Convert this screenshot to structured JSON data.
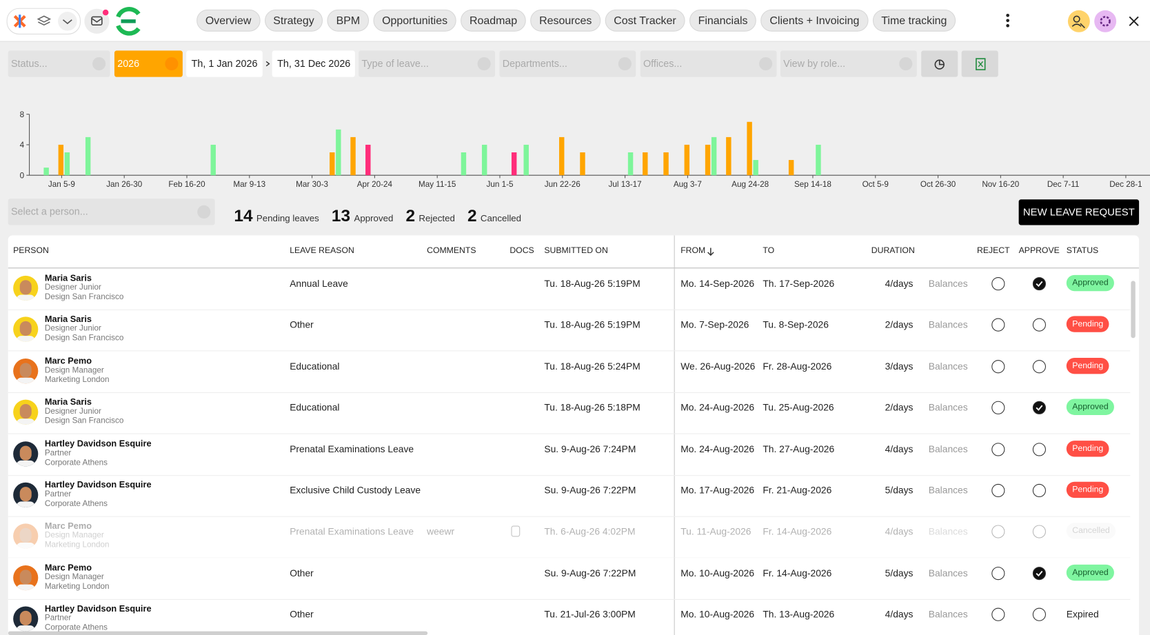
{
  "nav": {
    "tabs": [
      "Overview",
      "Strategy",
      "BPM",
      "Opportunities",
      "Roadmap",
      "Resources",
      "Cost Tracker",
      "Financials",
      "Clients + Invoicing",
      "Time tracking"
    ]
  },
  "filters": {
    "status": "Status...",
    "year": "2026",
    "from": "Th, 1 Jan 2026",
    "to": "Th, 31 Dec 2026",
    "leave_type": "Type of leave...",
    "departments": "Departments...",
    "offices": "Offices...",
    "role": "View by role..."
  },
  "chart_data": {
    "type": "bar",
    "categories": [
      null,
      "Jan 5-9",
      null,
      null,
      "Jan 26-30",
      null,
      null,
      "Feb 16-20",
      null,
      null,
      "Mar 9-13",
      null,
      null,
      "Mar 30-3",
      null,
      null,
      "Apr 20-24",
      null,
      null,
      "May 11-15",
      null,
      null,
      "Jun 1-5",
      null,
      null,
      "Jun 22-26",
      null,
      null,
      "Jul 13-17",
      null,
      null,
      "Aug 3-7",
      null,
      null,
      "Aug 24-28",
      null,
      null,
      "Sep 14-18",
      null,
      null,
      "Oct 5-9",
      null,
      null,
      "Oct 26-30",
      null,
      null,
      "Nov 16-20",
      null,
      null,
      "Dec 7-11",
      null,
      null,
      "Dec 28-1"
    ],
    "series": [
      {
        "color": "#ffa500",
        "values": [
          0,
          4,
          0,
          0,
          0,
          0,
          0,
          0,
          0,
          0,
          0,
          0,
          0,
          0,
          3,
          5,
          0,
          0,
          0,
          0,
          0,
          0,
          0,
          0,
          0,
          5,
          3,
          0,
          0,
          3,
          3,
          4,
          4,
          5,
          7,
          0,
          2,
          0,
          0,
          0,
          0,
          0,
          0,
          0,
          0,
          0,
          0,
          0,
          0,
          0,
          0,
          0,
          0
        ]
      },
      {
        "color": "#7ef59a",
        "values": [
          1,
          3,
          5,
          0,
          0,
          0,
          0,
          0,
          4,
          0,
          0,
          0,
          0,
          0,
          6,
          0,
          0,
          0,
          0,
          0,
          3,
          4,
          0,
          4,
          0,
          0,
          0,
          0,
          3,
          0,
          0,
          0,
          5,
          0,
          2,
          0,
          0,
          4,
          0,
          0,
          0,
          0,
          0,
          0,
          0,
          0,
          0,
          0,
          0,
          0,
          0,
          0,
          0
        ]
      },
      {
        "color": "#ff2d7a",
        "values": [
          0,
          0,
          0,
          0,
          0,
          0,
          0,
          0,
          0,
          0,
          0,
          0,
          0,
          0,
          0,
          0,
          4,
          0,
          0,
          0,
          0,
          0,
          0,
          3,
          0,
          0,
          0,
          0,
          0,
          0,
          0,
          0,
          0,
          0,
          0,
          0,
          0,
          0,
          0,
          0,
          0,
          0,
          0,
          0,
          0,
          0,
          0,
          0,
          0,
          0,
          0,
          0,
          0
        ]
      }
    ],
    "ylim": [
      0,
      8
    ],
    "yticks": [
      0,
      4,
      8
    ]
  },
  "person_select": "Select a person...",
  "stats": [
    {
      "count": 14,
      "label": "Pending leaves"
    },
    {
      "count": 13,
      "label": "Approved"
    },
    {
      "count": 2,
      "label": "Rejected"
    },
    {
      "count": 2,
      "label": "Cancelled"
    }
  ],
  "new_request": "NEW LEAVE REQUEST",
  "table": {
    "headers": {
      "person": "PERSON",
      "reason": "LEAVE REASON",
      "comments": "COMMENTS",
      "docs": "DOCS",
      "submitted": "SUBMITTED ON",
      "from": "FROM",
      "to": "TO",
      "duration": "DURATION",
      "reject": "REJECT",
      "approve": "APPROVE",
      "status": "STATUS"
    },
    "rows": [
      {
        "name": "Maria Saris",
        "role": "Designer Junior",
        "office": "Design San Francisco",
        "avatar_color": "#f7d21c",
        "reason": "Annual Leave",
        "submitted": "Tu. 18-Aug-26 5:19PM",
        "from": "Mo. 14-Sep-2026",
        "to": "Th. 17-Sep-2026",
        "duration": "4/days",
        "balances": "Balances",
        "approved": true,
        "status": "Approved",
        "status_color": "#7ff5a0",
        "status_text_color": "#17602f"
      },
      {
        "name": "Maria Saris",
        "role": "Designer Junior",
        "office": "Design San Francisco",
        "avatar_color": "#f7d21c",
        "reason": "Other",
        "submitted": "Tu. 18-Aug-26 5:19PM",
        "from": "Mo. 7-Sep-2026",
        "to": "Tu. 8-Sep-2026",
        "duration": "2/days",
        "balances": "Balances",
        "approved": false,
        "status": "Pending",
        "status_color": "#ff4f45",
        "status_text_color": "#ffffff"
      },
      {
        "name": "Marc Pemo",
        "role": "Design Manager",
        "office": "Marketing London",
        "avatar_color": "#e8721c",
        "reason": "Educational",
        "submitted": "Tu. 18-Aug-26 5:24PM",
        "from": "We. 26-Aug-2026",
        "to": "Fr. 28-Aug-2026",
        "duration": "3/days",
        "balances": "Balances",
        "approved": false,
        "status": "Pending",
        "status_color": "#ff4f45",
        "status_text_color": "#ffffff"
      },
      {
        "name": "Maria Saris",
        "role": "Designer Junior",
        "office": "Design San Francisco",
        "avatar_color": "#f7d21c",
        "reason": "Educational",
        "submitted": "Tu. 18-Aug-26 5:18PM",
        "from": "Mo. 24-Aug-2026",
        "to": "Tu. 25-Aug-2026",
        "duration": "2/days",
        "balances": "Balances",
        "approved": true,
        "status": "Approved",
        "status_color": "#7ff5a0",
        "status_text_color": "#17602f"
      },
      {
        "name": "Hartley Davidson Esquire",
        "role": "Partner",
        "office": "Corporate Athens",
        "avatar_color": "#1e2a38",
        "reason": "Prenatal Examinations Leave",
        "submitted": "Su. 9-Aug-26 7:24PM",
        "from": "Mo. 24-Aug-2026",
        "to": "Th. 27-Aug-2026",
        "duration": "4/days",
        "balances": "Balances",
        "approved": false,
        "status": "Pending",
        "status_color": "#ff4f45",
        "status_text_color": "#ffffff"
      },
      {
        "name": "Hartley Davidson Esquire",
        "role": "Partner",
        "office": "Corporate Athens",
        "avatar_color": "#1e2a38",
        "reason": "Exclusive Child Custody Leave",
        "submitted": "Su. 9-Aug-26 7:22PM",
        "from": "Mo. 17-Aug-2026",
        "to": "Fr. 21-Aug-2026",
        "duration": "5/days",
        "balances": "Balances",
        "approved": false,
        "status": "Pending",
        "status_color": "#ff4f45",
        "status_text_color": "#ffffff"
      },
      {
        "name": "Marc Pemo",
        "role": "Design Manager",
        "office": "Marketing London",
        "avatar_color": "#e8721c",
        "reason": "Prenatal Examinations Leave",
        "comments": "weewr",
        "docs": true,
        "submitted": "Th. 6-Aug-26 4:02PM",
        "from": "Tu. 11-Aug-2026",
        "to": "Fr. 14-Aug-2026",
        "duration": "4/days",
        "balances": "Balances",
        "approved": false,
        "muted": true,
        "status": "Cancelled",
        "status_color": "#f2f2f2",
        "status_text_color": "#888888"
      },
      {
        "name": "Marc Pemo",
        "role": "Design Manager",
        "office": "Marketing London",
        "avatar_color": "#e8721c",
        "reason": "Other",
        "submitted": "Su. 9-Aug-26 7:22PM",
        "from": "Mo. 10-Aug-2026",
        "to": "Fr. 14-Aug-2026",
        "duration": "5/days",
        "balances": "Balances",
        "approved": true,
        "status": "Approved",
        "status_color": "#7ff5a0",
        "status_text_color": "#17602f"
      },
      {
        "name": "Hartley Davidson Esquire",
        "role": "Partner",
        "office": "Corporate Athens",
        "avatar_color": "#1e2a38",
        "reason": "Other",
        "submitted": "Tu. 21-Jul-26 3:00PM",
        "from": "Mo. 10-Aug-2026",
        "to": "Th. 13-Aug-2026",
        "duration": "4/days",
        "balances": "Balances",
        "approved": false,
        "status": "Expired"
      }
    ]
  }
}
